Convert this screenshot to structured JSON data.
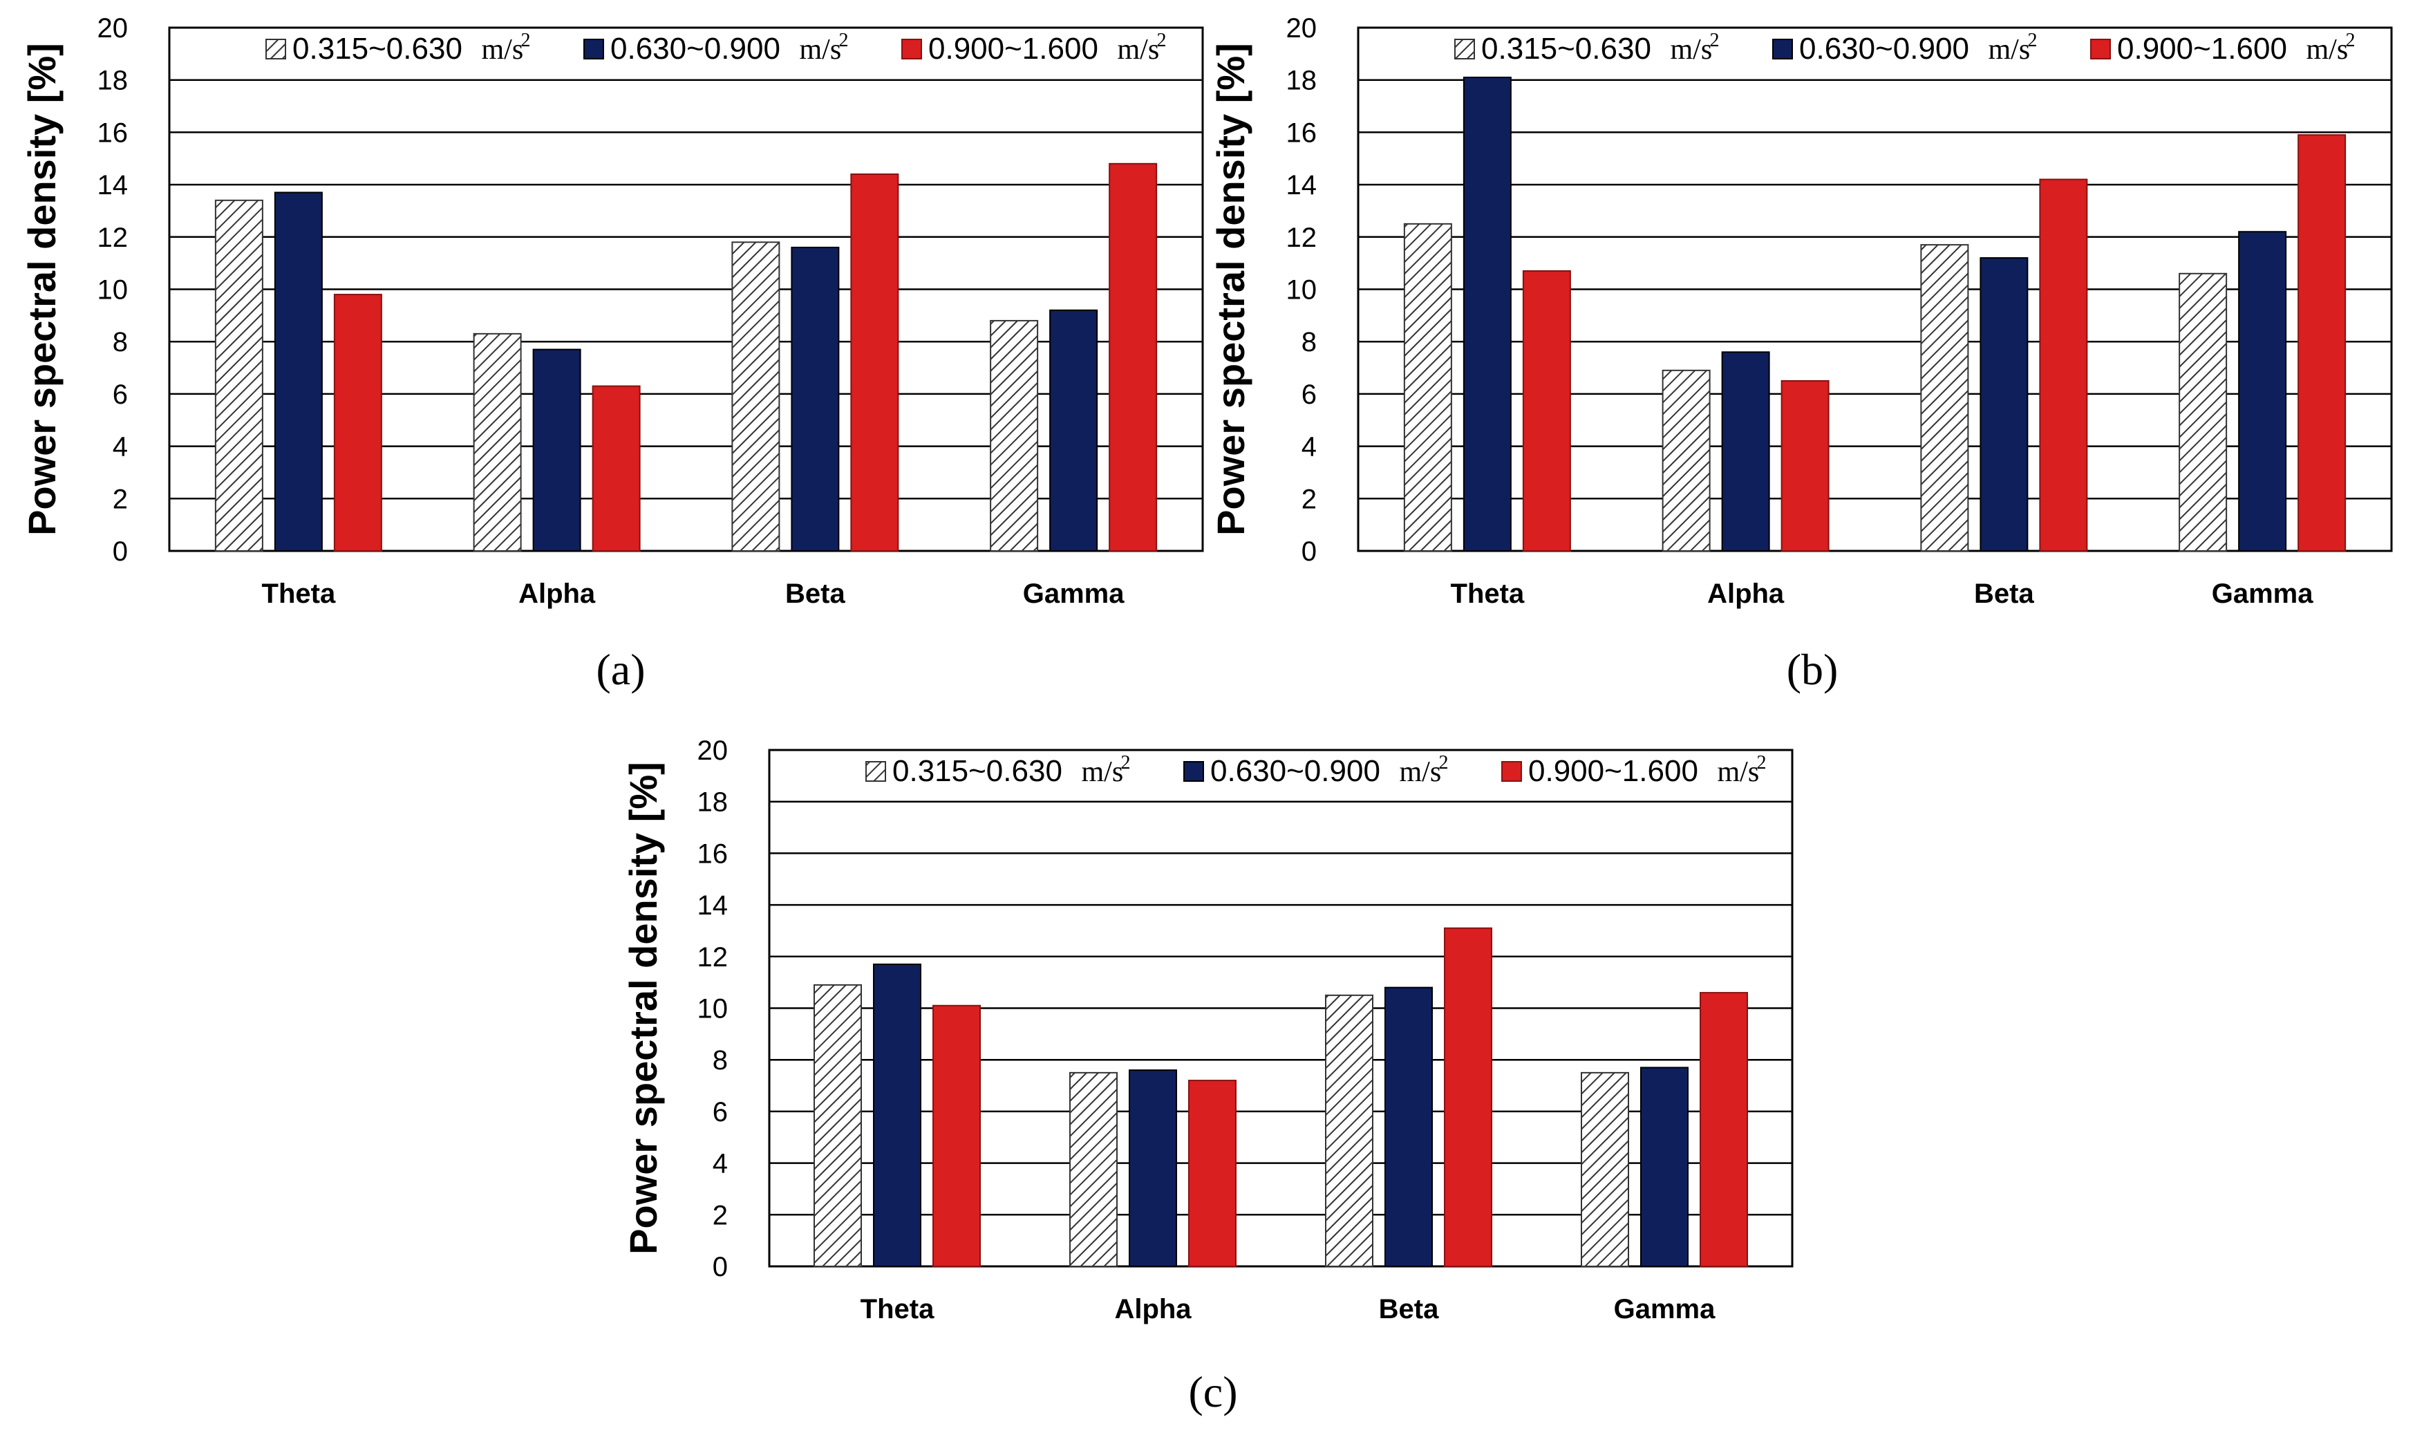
{
  "chart_data": [
    {
      "type": "bar",
      "panel_label": "(a)",
      "categories": [
        "Theta",
        "Alpha",
        "Beta",
        "Gamma"
      ],
      "series": [
        {
          "name": "0.315~0.630",
          "unit": "m/s",
          "unit_exp": "2",
          "values": [
            13.4,
            8.3,
            11.8,
            8.8
          ]
        },
        {
          "name": "0.630~0.900",
          "unit": "m/s",
          "unit_exp": "2",
          "values": [
            13.7,
            7.7,
            11.6,
            9.2
          ]
        },
        {
          "name": "0.900~1.600",
          "unit": "m/s",
          "unit_exp": "2",
          "values": [
            9.8,
            6.3,
            14.4,
            14.8
          ]
        }
      ],
      "ylabel": "Power spectral density [%]",
      "ylim": [
        0,
        20
      ],
      "yticks": [
        0,
        2,
        4,
        6,
        8,
        10,
        12,
        14,
        16,
        18,
        20
      ],
      "grid": true,
      "legend": "top"
    },
    {
      "type": "bar",
      "panel_label": "(b)",
      "categories": [
        "Theta",
        "Alpha",
        "Beta",
        "Gamma"
      ],
      "series": [
        {
          "name": "0.315~0.630",
          "unit": "m/s",
          "unit_exp": "2",
          "values": [
            12.5,
            6.9,
            11.7,
            10.6
          ]
        },
        {
          "name": "0.630~0.900",
          "unit": "m/s",
          "unit_exp": "2",
          "values": [
            18.1,
            7.6,
            11.2,
            12.2
          ]
        },
        {
          "name": "0.900~1.600",
          "unit": "m/s",
          "unit_exp": "2",
          "values": [
            10.7,
            6.5,
            14.2,
            15.9
          ]
        }
      ],
      "ylabel": "Power spectral density [%]",
      "ylim": [
        0,
        20
      ],
      "yticks": [
        0,
        2,
        4,
        6,
        8,
        10,
        12,
        14,
        16,
        18,
        20
      ],
      "grid": true,
      "legend": "top"
    },
    {
      "type": "bar",
      "panel_label": "(c)",
      "categories": [
        "Theta",
        "Alpha",
        "Beta",
        "Gamma"
      ],
      "series": [
        {
          "name": "0.315~0.630",
          "unit": "m/s",
          "unit_exp": "2",
          "values": [
            10.9,
            7.5,
            10.5,
            7.5
          ]
        },
        {
          "name": "0.630~0.900",
          "unit": "m/s",
          "unit_exp": "2",
          "values": [
            11.7,
            7.6,
            10.8,
            7.7
          ]
        },
        {
          "name": "0.900~1.600",
          "unit": "m/s",
          "unit_exp": "2",
          "values": [
            10.1,
            7.2,
            13.1,
            10.6
          ]
        }
      ],
      "ylabel": "Power spectral density [%]",
      "ylim": [
        0,
        20
      ],
      "yticks": [
        0,
        2,
        4,
        6,
        8,
        10,
        12,
        14,
        16,
        18,
        20
      ],
      "grid": true,
      "legend": "top"
    }
  ],
  "colors": {
    "series_hatched_stroke": "#333333",
    "series_navy": "#0f1f5c",
    "series_red": "#d91f20",
    "grid": "#000000"
  }
}
